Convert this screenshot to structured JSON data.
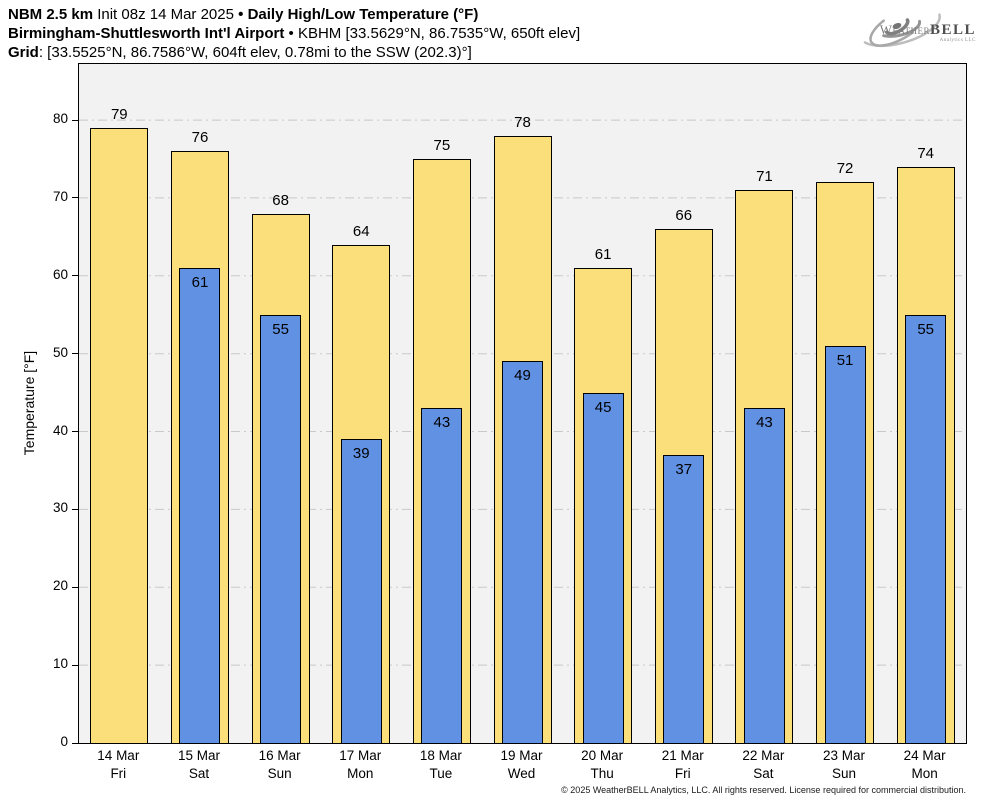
{
  "header": {
    "line1": {
      "model": "NBM 2.5 km",
      "init": "Init 08z 14 Mar 2025",
      "sep": "•",
      "product": "Daily High/Low Temperature (°F)"
    },
    "line2": {
      "station": "Birmingham-Shuttlesworth Int'l Airport",
      "sep": "•",
      "location": "KBHM [33.5629°N, 86.7535°W, 650ft elev]"
    },
    "line3": {
      "label": "Grid",
      "value": ": [33.5525°N, 86.7586°W, 604ft elev, 0.78mi to the SSW (202.3)°]"
    }
  },
  "logo": {
    "weather": "Weather",
    "bell": "BELL",
    "analytics": "Analytics LLC"
  },
  "chart_data": {
    "type": "bar",
    "title": "Daily High/Low Temperature (°F)",
    "xlabel": "",
    "ylabel": "Temperature [°F]",
    "ylim": [
      0,
      87.2
    ],
    "yticks": [
      0,
      10,
      20,
      30,
      40,
      50,
      60,
      70,
      80
    ],
    "grid": true,
    "legend": "none",
    "categories": [
      {
        "date": "14 Mar",
        "day": "Fri"
      },
      {
        "date": "15 Mar",
        "day": "Sat"
      },
      {
        "date": "16 Mar",
        "day": "Sun"
      },
      {
        "date": "17 Mar",
        "day": "Mon"
      },
      {
        "date": "18 Mar",
        "day": "Tue"
      },
      {
        "date": "19 Mar",
        "day": "Wed"
      },
      {
        "date": "20 Mar",
        "day": "Thu"
      },
      {
        "date": "21 Mar",
        "day": "Fri"
      },
      {
        "date": "22 Mar",
        "day": "Sat"
      },
      {
        "date": "23 Mar",
        "day": "Sun"
      },
      {
        "date": "24 Mar",
        "day": "Mon"
      }
    ],
    "series": [
      {
        "name": "Daily High",
        "color": "#FBDF7B",
        "values": [
          79,
          76,
          68,
          64,
          75,
          78,
          61,
          66,
          71,
          72,
          74
        ]
      },
      {
        "name": "Daily Low",
        "color": "#6191E3",
        "values": [
          null,
          61,
          55,
          39,
          43,
          49,
          45,
          37,
          43,
          51,
          55
        ]
      }
    ],
    "colors": {
      "plot_bg": "#F2F2F2",
      "gridline": "#C9C9C9",
      "bar_outline": "#000000"
    }
  },
  "footer": "© 2025 WeatherBELL Analytics, LLC. All rights reserved. License required for commercial distribution."
}
